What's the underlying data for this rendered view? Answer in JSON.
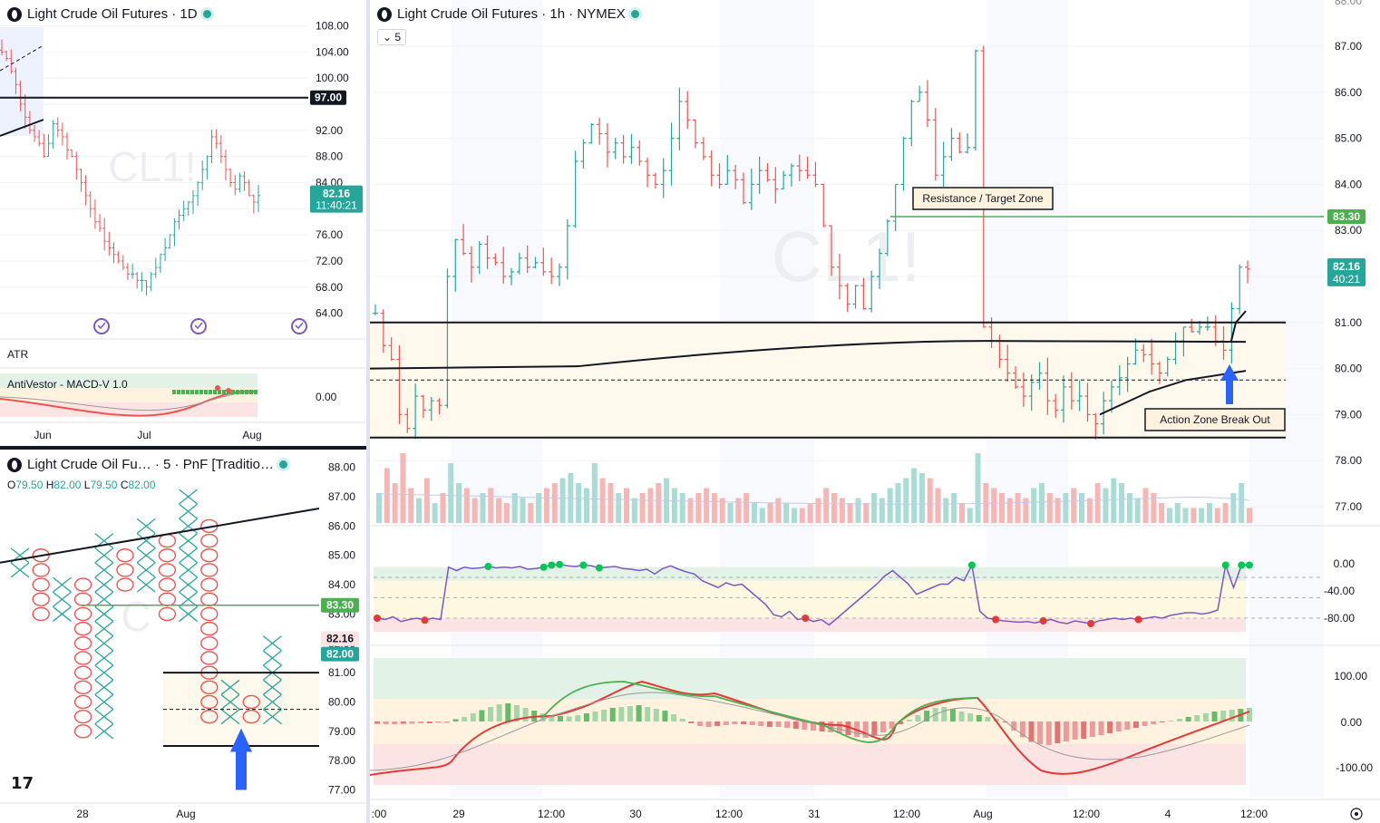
{
  "symbol_full": "Light Crude Oil Futures",
  "colors": {
    "up": "#26a69a",
    "down": "#ef5350",
    "green_line": "#4caf50",
    "zone_fill": "#fff8ec",
    "purple": "#7e57c2",
    "blue_arrow": "#2962ff"
  },
  "panel_daily": {
    "title": "Light Crude Oil Futures · 1D",
    "watermark": "CL1!",
    "price_label_97": "97.00",
    "last_price": "82.16",
    "countdown": "11:40:21",
    "y_ticks": [
      "108.00",
      "104.00",
      "100.00",
      "96.00",
      "92.00",
      "88.00",
      "84.00",
      "80.00",
      "76.00",
      "72.00",
      "68.00",
      "64.00"
    ],
    "x_ticks": [
      "Jun",
      "Jul",
      "Aug"
    ],
    "atr_label": "ATR",
    "macd_label": "AntiVestor - MACD-V 1.0",
    "macd_tick": "0.00"
  },
  "panel_pnf": {
    "title": "Light Crude Oil Fu… · 5 · PnF [Traditio…",
    "ohlc": {
      "o_label": "O",
      "o": "79.50",
      "h_label": "H",
      "h": "82.00",
      "l_label": "L",
      "l": "79.50",
      "c_label": "C",
      "c": "82.00"
    },
    "y_ticks": [
      "88.00",
      "87.00",
      "86.00",
      "85.00",
      "84.00",
      "83.00",
      "82.00",
      "81.00",
      "80.00",
      "79.00",
      "78.00",
      "77.00"
    ],
    "label_83": "83.30",
    "label_8216": "82.16",
    "label_82": "82.00",
    "x_ticks": [
      "28",
      "Aug"
    ],
    "tv_logo": "17"
  },
  "panel_hourly": {
    "title": "Light Crude Oil Futures · 1h · NYMEX",
    "interval_button": "5",
    "watermark": "CL1!",
    "resistance_label": "Resistance / Target Zone",
    "breakout_label": "Action Zone Break Out",
    "label_83": "83.30",
    "last_price": "82.16",
    "countdown": "40:21",
    "y_ticks": [
      "87.00",
      "86.00",
      "85.00",
      "84.00",
      "83.00",
      "82.00",
      "81.00",
      "80.00",
      "79.00",
      "78.00",
      "77.00"
    ],
    "willr_ticks": [
      "0.00",
      "-40.00",
      "-80.00"
    ],
    "macd_ticks": [
      "100.00",
      "0.00",
      "-100.00"
    ],
    "x_ticks": [
      ":00",
      "29",
      "12:00",
      "30",
      "12:00",
      "31",
      "12:00",
      "Aug",
      "12:00",
      "4",
      "12:00"
    ]
  },
  "chart_data": [
    {
      "type": "candlestick",
      "title": "Light Crude Oil Futures · 1D",
      "x_ticks": [
        "Jun",
        "Jul",
        "Aug"
      ],
      "ylim": [
        62,
        110
      ],
      "annotations": [
        "97.00 horizontal level"
      ],
      "close_series": [
        104,
        103,
        101,
        99,
        96,
        94,
        92,
        91,
        90,
        88,
        90,
        93,
        92,
        91,
        89,
        88,
        86,
        84,
        82,
        80,
        78,
        77,
        75,
        74,
        73,
        72,
        71,
        70,
        70,
        69,
        69,
        68,
        70,
        71,
        73,
        74,
        76,
        78,
        79,
        80,
        81,
        82,
        84,
        86,
        88,
        91,
        90,
        88,
        86,
        84,
        83,
        85,
        84,
        82,
        81,
        82
      ]
    },
    {
      "type": "pnf",
      "title": "Light Crude Oil Fu… · 5 · PnF [Traditio…",
      "box_size": 0.5,
      "ylim": [
        76.8,
        88.3
      ],
      "columns": [
        {
          "kind": "X",
          "low": 84.5,
          "high": 85.0
        },
        {
          "kind": "O",
          "low": 83.0,
          "high": 85.0
        },
        {
          "kind": "X",
          "low": 83.0,
          "high": 84.0
        },
        {
          "kind": "O",
          "low": 79.0,
          "high": 84.0
        },
        {
          "kind": "X",
          "low": 79.0,
          "high": 85.5
        },
        {
          "kind": "O",
          "low": 84.0,
          "high": 85.0
        },
        {
          "kind": "X",
          "low": 84.0,
          "high": 86.0
        },
        {
          "kind": "O",
          "low": 83.0,
          "high": 85.5
        },
        {
          "kind": "X",
          "low": 83.0,
          "high": 87.0
        },
        {
          "kind": "O",
          "low": 79.5,
          "high": 86.0
        },
        {
          "kind": "X",
          "low": 79.5,
          "high": 80.5
        },
        {
          "kind": "O",
          "low": 79.5,
          "high": 80.0
        },
        {
          "kind": "X",
          "low": 79.5,
          "high": 82.0
        }
      ]
    },
    {
      "type": "candlestick",
      "title": "Light Crude Oil Futures · 1h · NYMEX",
      "x_ticks": [
        ":00",
        "29",
        "12:00",
        "30",
        "12:00",
        "31",
        "12:00",
        "Aug",
        "12:00",
        "4",
        "12:00"
      ],
      "ylim": [
        76.6,
        88.0
      ],
      "levels": {
        "resistance": 83.3,
        "zone_top": 81.0,
        "zone_mid": 79.75,
        "zone_bottom": 78.5
      },
      "close_series": [
        81.2,
        80.5,
        80.2,
        79.0,
        78.7,
        79.4,
        79.1,
        79.3,
        79.2,
        82.0,
        82.8,
        82.5,
        82.2,
        82.7,
        82.4,
        82.3,
        82.0,
        82.1,
        82.4,
        82.2,
        82.3,
        82.1,
        82.0,
        82.2,
        83.1,
        84.5,
        84.9,
        85.3,
        85.1,
        84.7,
        84.9,
        84.6,
        84.8,
        84.5,
        84.2,
        84.0,
        84.3,
        85.0,
        85.8,
        85.4,
        84.9,
        84.6,
        84.2,
        84.0,
        84.3,
        84.1,
        83.6,
        84.0,
        84.3,
        84.1,
        83.9,
        84.2,
        84.4,
        84.3,
        84.2,
        84.0,
        83.1,
        82.2,
        81.8,
        81.4,
        81.8,
        81.3,
        82.0,
        82.5,
        83.2,
        84.0,
        85.0,
        85.8,
        86.0,
        85.4,
        84.2,
        84.6,
        85.0,
        84.7,
        84.8,
        86.9,
        80.9,
        80.6,
        80.2,
        79.9,
        79.6,
        79.4,
        79.7,
        79.9,
        79.3,
        79.1,
        79.6,
        79.3,
        79.4,
        79.0,
        78.8,
        79.3,
        79.6,
        79.8,
        80.1,
        80.4,
        80.3,
        80.1,
        79.9,
        80.2,
        80.6,
        80.9,
        80.8,
        80.9,
        80.9,
        80.6,
        80.4,
        81.3,
        82.2,
        82.16
      ],
      "volume": [
        30,
        55,
        40,
        70,
        35,
        25,
        45,
        20,
        30,
        60,
        40,
        35,
        25,
        30,
        35,
        25,
        20,
        30,
        25,
        20,
        30,
        35,
        40,
        45,
        50,
        40,
        35,
        60,
        45,
        40,
        30,
        35,
        25,
        30,
        35,
        40,
        45,
        35,
        30,
        25,
        30,
        35,
        30,
        25,
        20,
        25,
        30,
        20,
        15,
        20,
        25,
        20,
        15,
        15,
        20,
        25,
        35,
        30,
        25,
        20,
        25,
        20,
        30,
        25,
        35,
        40,
        45,
        55,
        50,
        45,
        35,
        25,
        30,
        20,
        15,
        70,
        40,
        35,
        30,
        25,
        30,
        25,
        35,
        40,
        30,
        25,
        30,
        35,
        30,
        25,
        40,
        35,
        45,
        40,
        30,
        25,
        35,
        30,
        20,
        15,
        20,
        15,
        15,
        15,
        20,
        15,
        20,
        30,
        40,
        15
      ]
    },
    {
      "type": "line",
      "title": "Williams %R",
      "ylim": [
        -100,
        5
      ],
      "values": [
        -80,
        -82,
        -78,
        -85,
        -82,
        -80,
        -83,
        -80,
        -82,
        -5,
        -10,
        -5,
        -7,
        -6,
        -4,
        -6,
        -5,
        -6,
        -4,
        -8,
        -7,
        -5,
        -2,
        -1,
        -3,
        -4,
        -2,
        -3,
        -6,
        -5,
        -4,
        -7,
        -8,
        -10,
        -8,
        -15,
        -7,
        -3,
        -8,
        -12,
        -15,
        -25,
        -30,
        -35,
        -28,
        -32,
        -30,
        -40,
        -50,
        -60,
        -75,
        -78,
        -70,
        -82,
        -80,
        -85,
        -82,
        -90,
        -80,
        -70,
        -60,
        -50,
        -40,
        -30,
        -18,
        -10,
        -20,
        -30,
        -45,
        -40,
        -35,
        -30,
        -30,
        -20,
        -25,
        -2,
        -70,
        -80,
        -82,
        -84,
        -85,
        -86,
        -85,
        -87,
        -84,
        -82,
        -86,
        -88,
        -84,
        -86,
        -88,
        -84,
        -82,
        -80,
        -82,
        -80,
        -82,
        -80,
        -78,
        -80,
        -76,
        -74,
        -72,
        -72,
        -74,
        -72,
        -68,
        -2,
        -35,
        -2,
        -2
      ]
    },
    {
      "type": "histogram",
      "title": "MACD-V",
      "ylim": [
        -140,
        140
      ],
      "values": [
        -5,
        -6,
        -6,
        -5,
        -5,
        -4,
        -4,
        -3,
        -3,
        5,
        10,
        18,
        25,
        32,
        38,
        40,
        36,
        30,
        24,
        18,
        14,
        12,
        11,
        14,
        18,
        22,
        26,
        30,
        32,
        34,
        36,
        32,
        28,
        24,
        16,
        6,
        -4,
        -10,
        -12,
        -10,
        -8,
        -6,
        -6,
        -8,
        -10,
        -12,
        -12,
        -14,
        -16,
        -18,
        -20,
        -22,
        -24,
        -26,
        -30,
        -34,
        -36,
        -30,
        -24,
        -16,
        -6,
        4,
        14,
        24,
        30,
        32,
        28,
        22,
        18,
        14,
        10,
        6,
        -2,
        -20,
        -35,
        -45,
        -50,
        -52,
        -48,
        -44,
        -40,
        -38,
        -34,
        -30,
        -26,
        -22,
        -18,
        -14,
        -10,
        -6,
        -2,
        2,
        6,
        10,
        14,
        18,
        22,
        24,
        26,
        28,
        30
      ]
    }
  ]
}
